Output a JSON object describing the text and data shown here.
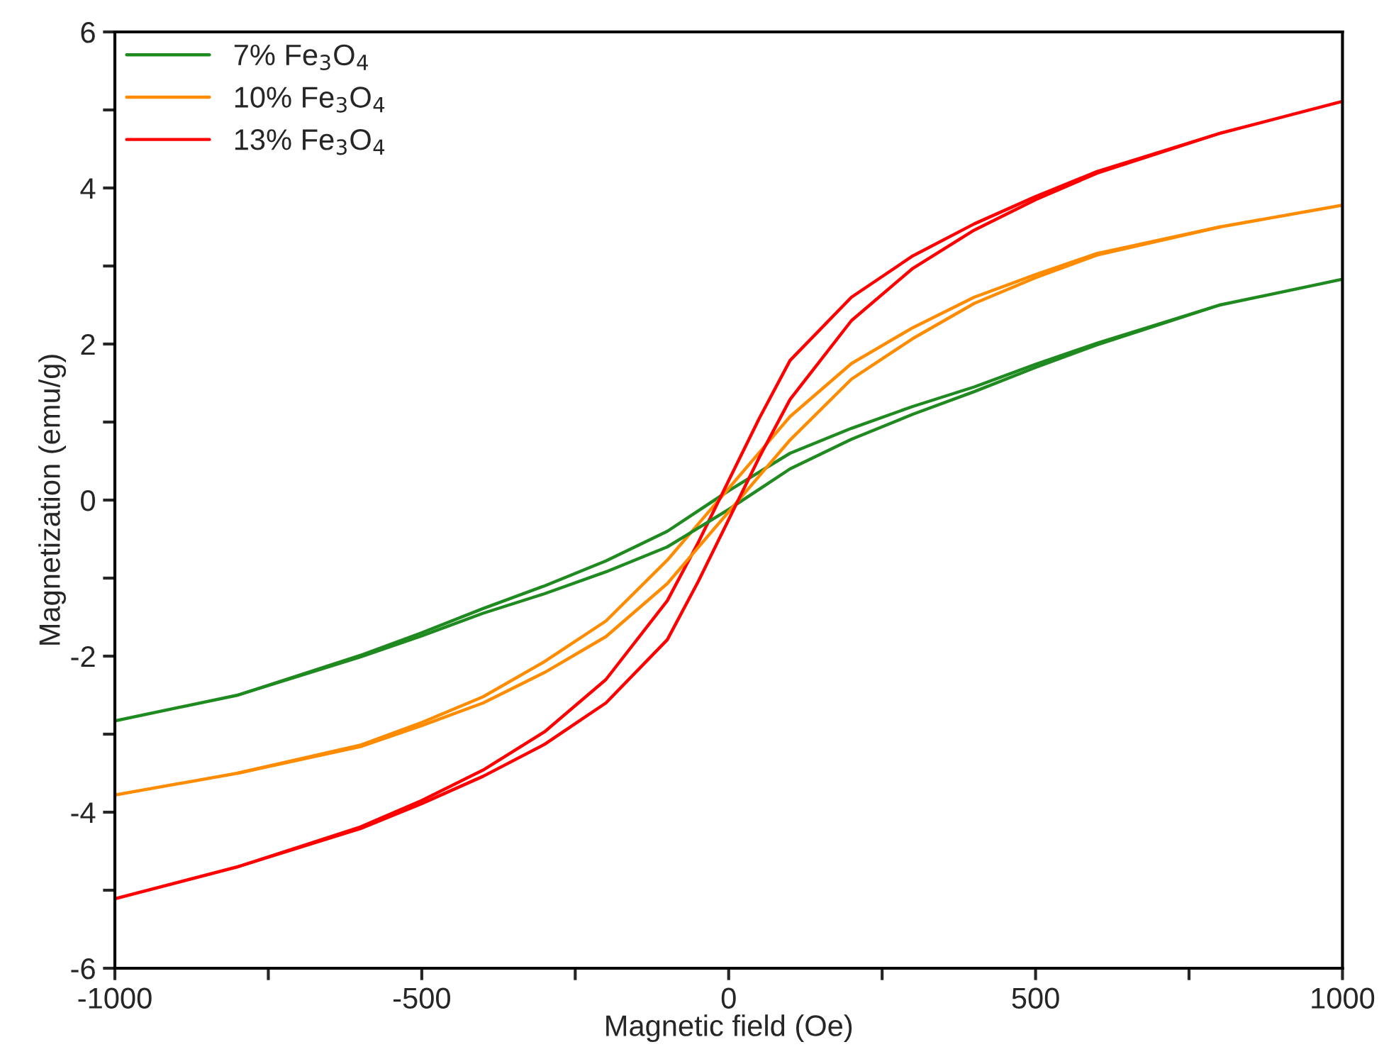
{
  "chart_data": {
    "type": "line",
    "xlabel": "Magnetic field (Oe)",
    "ylabel": "Magnetization (emu/g)",
    "xlim": [
      -1000,
      1000
    ],
    "ylim": [
      -6,
      6
    ],
    "xticks": [
      -1000,
      {
        "value": -750,
        "label": null
      },
      -500,
      {
        "value": -250,
        "label": null
      },
      0,
      {
        "value": 250,
        "label": null
      },
      500,
      {
        "value": 750,
        "label": null
      },
      1000
    ],
    "yticks": [
      -6,
      {
        "value": -5,
        "label": null
      },
      -4,
      {
        "value": -3,
        "label": null
      },
      -2,
      {
        "value": -1,
        "label": null
      },
      0,
      {
        "value": 1,
        "label": null
      },
      2,
      {
        "value": 3,
        "label": null
      },
      4,
      {
        "value": 5,
        "label": null
      },
      6
    ],
    "grid": false,
    "legend": "top left",
    "marker": "none",
    "line_style": "solid",
    "series": [
      {
        "name": "7% Fe$_{3}$O$_{4}$",
        "color": "#1f8a1f",
        "x": [
          -1000,
          -800,
          -600,
          -500,
          -400,
          -300,
          -200,
          -100,
          -50,
          0,
          50,
          100,
          200,
          300,
          400,
          500,
          600,
          800,
          1000
        ],
        "values": [
          -2.83,
          -2.5,
          -1.99,
          -1.7,
          -1.39,
          -1.1,
          -0.78,
          -0.4,
          -0.14,
          0.12,
          0.36,
          0.6,
          0.92,
          1.2,
          1.45,
          1.74,
          2.01,
          2.5,
          2.83
        ]
      },
      {
        "name": "10% Fe$_{3}$O$_{4}$",
        "color": "#ff8c00",
        "x": [
          -1000,
          -800,
          -600,
          -500,
          -400,
          -300,
          -200,
          -100,
          -50,
          0,
          50,
          100,
          200,
          300,
          400,
          500,
          600,
          800,
          1000
        ],
        "values": [
          -3.78,
          -3.5,
          -3.14,
          -2.85,
          -2.52,
          -2.07,
          -1.55,
          -0.77,
          -0.31,
          0.15,
          0.61,
          1.07,
          1.75,
          2.21,
          2.6,
          2.89,
          3.16,
          3.5,
          3.78
        ]
      },
      {
        "name": "13% Fe$_{3}$O$_{4}$",
        "color": "#ff0000",
        "x": [
          -1000,
          -800,
          -600,
          -500,
          -400,
          -300,
          -200,
          -100,
          -50,
          0,
          50,
          100,
          200,
          300,
          400,
          500,
          600,
          800,
          1000
        ],
        "values": [
          -5.11,
          -4.7,
          -4.19,
          -3.85,
          -3.46,
          -2.97,
          -2.3,
          -1.29,
          -0.55,
          0.25,
          1.05,
          1.79,
          2.6,
          3.13,
          3.54,
          3.89,
          4.21,
          4.7,
          5.11
        ]
      },
      {
        "color": "#1f8a1f",
        "x": [
          -800,
          -600,
          -500,
          -400,
          -300,
          -200,
          -100,
          -50,
          0,
          50,
          100,
          200,
          300,
          400,
          500,
          600,
          800
        ],
        "values": [
          -2.5,
          -2.01,
          -1.74,
          -1.45,
          -1.2,
          -0.92,
          -0.6,
          -0.36,
          -0.12,
          0.14,
          0.4,
          0.78,
          1.1,
          1.39,
          1.7,
          1.99,
          2.5
        ]
      },
      {
        "color": "#ff8c00",
        "x": [
          -800,
          -600,
          -500,
          -400,
          -300,
          -200,
          -100,
          -50,
          0,
          50,
          100,
          200,
          300,
          400,
          500,
          600,
          800
        ],
        "values": [
          -3.5,
          -3.16,
          -2.89,
          -2.6,
          -2.21,
          -1.75,
          -1.07,
          -0.61,
          -0.15,
          0.31,
          0.77,
          1.55,
          2.07,
          2.52,
          2.85,
          3.14,
          3.5
        ]
      },
      {
        "color": "#ff0000",
        "x": [
          -800,
          -600,
          -500,
          -400,
          -300,
          -200,
          -100,
          -50,
          0,
          50,
          100,
          200,
          300,
          400,
          500,
          600,
          800
        ],
        "values": [
          -4.7,
          -4.21,
          -3.89,
          -3.54,
          -3.13,
          -2.6,
          -1.79,
          -1.05,
          -0.25,
          0.55,
          1.29,
          2.3,
          2.97,
          3.46,
          3.85,
          4.19,
          4.7
        ]
      }
    ]
  }
}
